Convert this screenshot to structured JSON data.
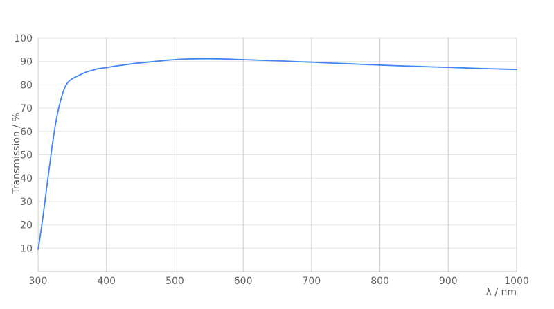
{
  "chart_data": {
    "type": "line",
    "title": "",
    "xlabel": "λ / nm",
    "ylabel": "Transmission / %",
    "xlim": [
      300,
      1000
    ],
    "ylim": [
      0,
      100
    ],
    "x_ticks": [
      300,
      400,
      500,
      600,
      700,
      800,
      900,
      1000
    ],
    "y_ticks": [
      10,
      20,
      30,
      40,
      50,
      60,
      70,
      80,
      90,
      100
    ],
    "grid": true,
    "legend": "none",
    "colors": {
      "line": "#4285f4",
      "grid_vertical": "#cccccc",
      "grid_horizontal": "#e4e4e4",
      "axis_line": "#bdbdbd",
      "tick_text": "#616161",
      "axis_title_text": "#595959",
      "background": "#ffffff"
    },
    "series": [
      {
        "name": "Transmission",
        "color": "#4285f4",
        "x": [
          300,
          302,
          304,
          306,
          308,
          310,
          312,
          314,
          316,
          318,
          320,
          322,
          324,
          326,
          328,
          330,
          332,
          334,
          336,
          338,
          340,
          342,
          345,
          350,
          355,
          360,
          365,
          370,
          375,
          380,
          385,
          390,
          395,
          400,
          410,
          420,
          430,
          440,
          450,
          460,
          470,
          480,
          490,
          500,
          510,
          520,
          530,
          540,
          550,
          560,
          570,
          580,
          590,
          600,
          620,
          640,
          660,
          680,
          700,
          720,
          740,
          760,
          780,
          800,
          820,
          840,
          860,
          880,
          900,
          920,
          940,
          960,
          980,
          1000
        ],
        "y": [
          9.5,
          13,
          17,
          21,
          25.5,
          30,
          34.5,
          39,
          43.5,
          48,
          52.5,
          56.5,
          60.5,
          64,
          67,
          69.8,
          72.2,
          74.4,
          76.3,
          78,
          79.4,
          80.4,
          81.5,
          82.6,
          83.4,
          84.1,
          84.8,
          85.4,
          85.9,
          86.3,
          86.7,
          87,
          87.2,
          87.4,
          87.9,
          88.3,
          88.7,
          89.1,
          89.4,
          89.7,
          90,
          90.3,
          90.6,
          90.8,
          91,
          91.1,
          91.15,
          91.2,
          91.2,
          91.15,
          91.1,
          91,
          90.9,
          90.8,
          90.6,
          90.4,
          90.2,
          89.9,
          89.7,
          89.45,
          89.2,
          88.95,
          88.7,
          88.5,
          88.25,
          88.05,
          87.85,
          87.65,
          87.5,
          87.3,
          87.1,
          86.9,
          86.75,
          86.6
        ]
      }
    ]
  }
}
